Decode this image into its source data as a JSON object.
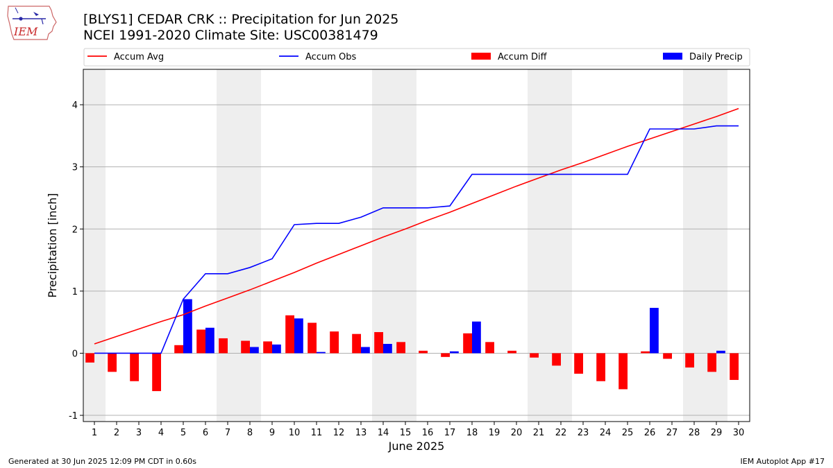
{
  "logo": {
    "text": "IEM"
  },
  "chart_data": {
    "type": "bar",
    "title": "[BLYS1] CEDAR CRK :: Precipitation for Jun 2025",
    "subtitle": "NCEI 1991-2020 Climate Site: USC00381479",
    "xlabel": "June 2025",
    "ylabel": "Precipitation [inch]",
    "ylim": [
      -1.1,
      4.57
    ],
    "yticks": [
      -1,
      0,
      1,
      2,
      3,
      4
    ],
    "x": [
      1,
      2,
      3,
      4,
      5,
      6,
      7,
      8,
      9,
      10,
      11,
      12,
      13,
      14,
      15,
      16,
      17,
      18,
      19,
      20,
      21,
      22,
      23,
      24,
      25,
      26,
      27,
      28,
      29,
      30
    ],
    "grid": "horizontal",
    "legend_position": "top",
    "weekend_shading": [
      [
        1,
        1
      ],
      [
        7,
        8
      ],
      [
        14,
        15
      ],
      [
        21,
        22
      ],
      [
        28,
        29
      ]
    ],
    "series": [
      {
        "name": "Accum Avg",
        "kind": "line",
        "color": "#ff0000",
        "values": [
          0.15,
          0.27,
          0.39,
          0.51,
          0.62,
          0.76,
          0.89,
          1.02,
          1.16,
          1.3,
          1.45,
          1.59,
          1.73,
          1.87,
          2.0,
          2.14,
          2.27,
          2.41,
          2.55,
          2.69,
          2.82,
          2.95,
          3.07,
          3.2,
          3.33,
          3.45,
          3.57,
          3.69,
          3.81,
          3.94
        ]
      },
      {
        "name": "Accum Obs",
        "kind": "line",
        "color": "#0000ff",
        "values": [
          0.0,
          0.0,
          0.0,
          0.0,
          0.87,
          1.28,
          1.28,
          1.38,
          1.52,
          2.07,
          2.09,
          2.09,
          2.19,
          2.34,
          2.34,
          2.34,
          2.37,
          2.88,
          2.88,
          2.88,
          2.88,
          2.88,
          2.88,
          2.88,
          2.88,
          3.61,
          3.61,
          3.61,
          3.66,
          3.66
        ]
      },
      {
        "name": "Accum Diff",
        "kind": "bar",
        "color": "#ff0000",
        "values": [
          -0.15,
          -0.3,
          -0.45,
          -0.61,
          0.13,
          0.38,
          0.24,
          0.2,
          0.19,
          0.61,
          0.49,
          0.35,
          0.31,
          0.34,
          0.18,
          0.04,
          -0.06,
          0.32,
          0.18,
          0.04,
          -0.07,
          -0.2,
          -0.33,
          -0.45,
          -0.58,
          0.03,
          -0.09,
          -0.23,
          -0.3,
          -0.43
        ]
      },
      {
        "name": "Daily Precip",
        "kind": "bar",
        "color": "#0000ff",
        "values": [
          0,
          0,
          0,
          0,
          0.87,
          0.41,
          0,
          0.1,
          0.14,
          0.56,
          0.02,
          0,
          0.1,
          0.15,
          0,
          0,
          0.03,
          0.51,
          0,
          0,
          0,
          0,
          0,
          0,
          0,
          0.73,
          0,
          0,
          0.04,
          0
        ]
      }
    ]
  },
  "footer": {
    "generated": "Generated at 30 Jun 2025 12:09 PM CDT in 0.60s",
    "app": "IEM Autoplot App #17"
  }
}
